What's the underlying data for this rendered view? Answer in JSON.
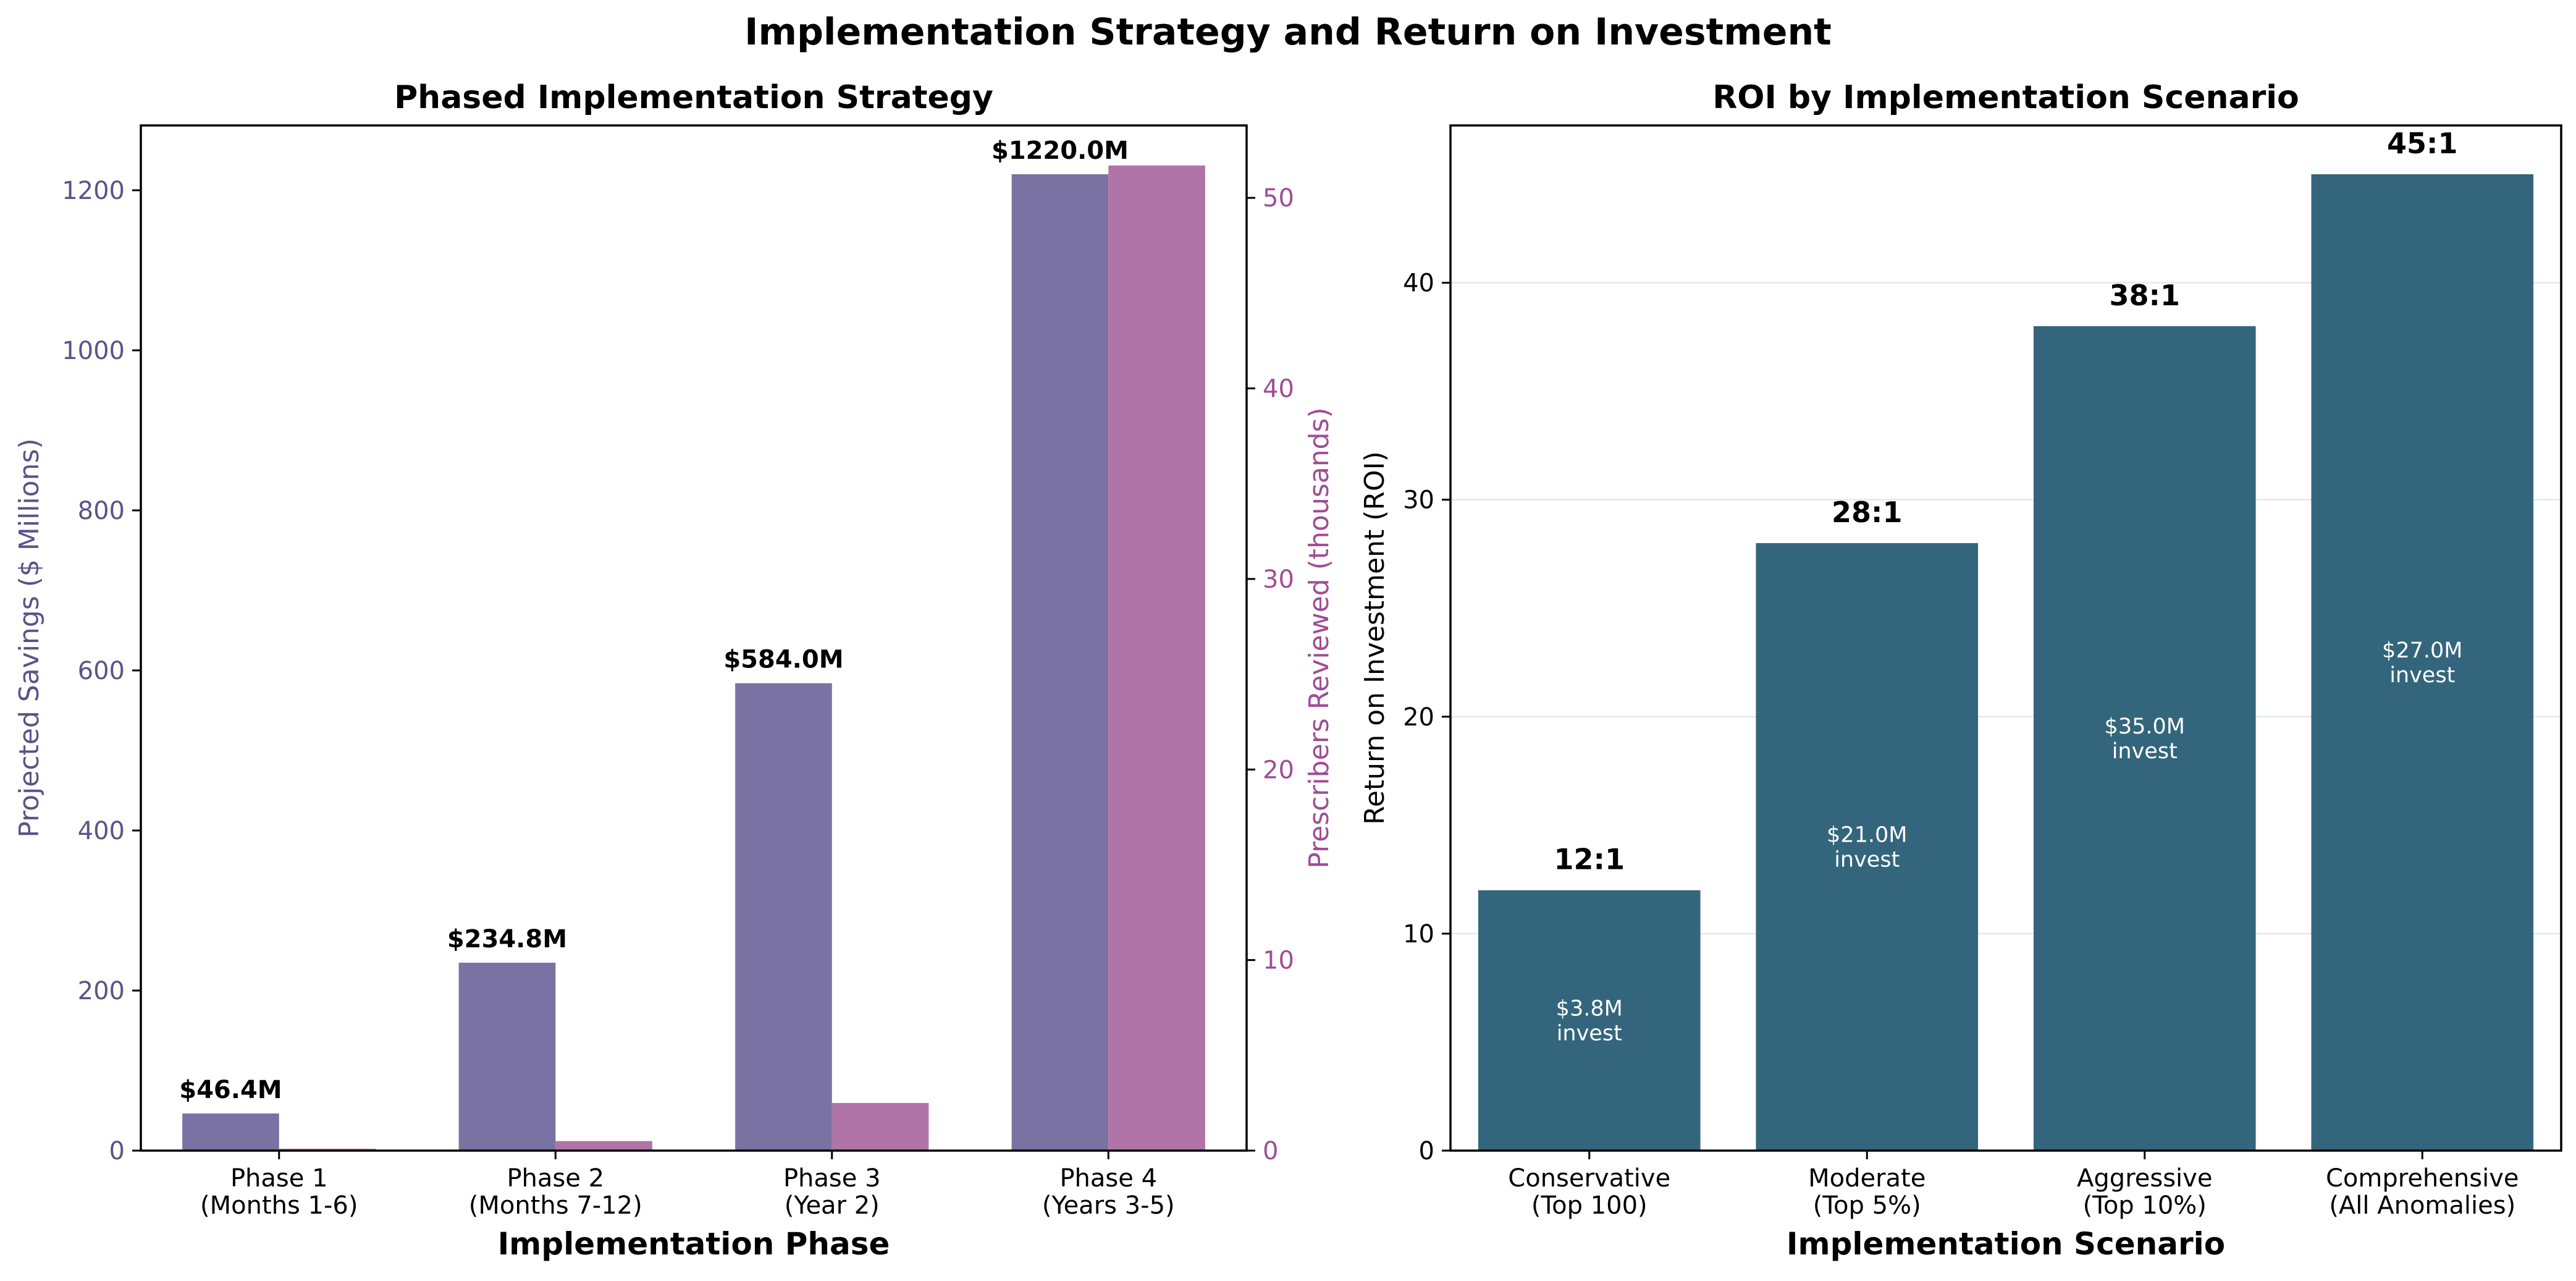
{
  "suptitle": "Implementation Strategy and Return on Investment",
  "colors": {
    "savings": "#7a72a2",
    "prescribers": "#b074a8",
    "savings_axis": "#5c5288",
    "prescribers_axis": "#a04c96",
    "roi_bar": "#33667c",
    "grid": "#dfe3e6"
  },
  "chart_data": [
    {
      "type": "bar",
      "title": "Phased Implementation Strategy",
      "xlabel": "Implementation Phase",
      "ylabel": "Projected Savings ($ Millions)",
      "y2label": "Prescribers Reviewed (thousands)",
      "categories": [
        "Phase 1\n(Months 1-6)",
        "Phase 2\n(Months 7-12)",
        "Phase 3\n(Year 2)",
        "Phase 4\n(Years 3-5)"
      ],
      "ylim": [
        0,
        1281
      ],
      "y2lim": [
        0,
        53.8
      ],
      "yticks": [
        0,
        200,
        400,
        600,
        800,
        1000,
        1200
      ],
      "y2ticks": [
        0,
        10,
        20,
        30,
        40,
        50
      ],
      "grid": false,
      "legend": "none",
      "series": [
        {
          "axis": "left",
          "values": [
            46.4,
            234.8,
            584.0,
            1220.0
          ],
          "labels": [
            "$46.4M",
            "$234.8M",
            "$584.0M",
            "$1220.0M"
          ]
        },
        {
          "axis": "right",
          "values": [
            0.1,
            0.5,
            2.5,
            51.7
          ]
        }
      ]
    },
    {
      "type": "bar",
      "title": "ROI by Implementation Scenario",
      "xlabel": "Implementation Scenario",
      "ylabel": "Return on Investment (ROI)",
      "categories": [
        "Conservative\n(Top 100)",
        "Moderate\n(Top 5%)",
        "Aggressive\n(Top 10%)",
        "Comprehensive\n(All Anomalies)"
      ],
      "ylim": [
        0,
        47.25
      ],
      "yticks": [
        0,
        10,
        20,
        30,
        40
      ],
      "grid": true,
      "legend": "none",
      "values": [
        12,
        28,
        38,
        45
      ],
      "roi_labels": [
        "12:1",
        "28:1",
        "38:1",
        "45:1"
      ],
      "invest_values": [
        "$3.8M",
        "$21.0M",
        "$35.0M",
        "$27.0M"
      ],
      "invest_suffix": "invest"
    }
  ]
}
